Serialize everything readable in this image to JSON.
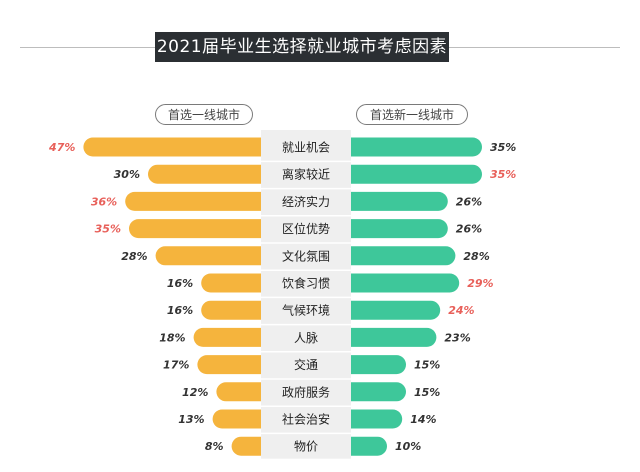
{
  "colors": {
    "left_bar": "#f5b43d",
    "right_bar": "#3ec79a",
    "highlight_text": "#e8605a",
    "normal_text": "#333333",
    "center_bg": "#efefef",
    "title_bg": "#2b2f33"
  },
  "chart_data": {
    "type": "bar",
    "title": "2021届毕业生选择就业城市考虑因素",
    "series": [
      {
        "name": "首选一线城市",
        "values": [
          47,
          30,
          36,
          35,
          28,
          16,
          16,
          18,
          17,
          12,
          13,
          8
        ],
        "labels": [
          "47%",
          "30%",
          "36%",
          "35%",
          "28%",
          "16%",
          "16%",
          "18%",
          "17%",
          "12%",
          "13%",
          "8%"
        ],
        "highlight": [
          true,
          false,
          true,
          true,
          false,
          false,
          false,
          false,
          false,
          false,
          false,
          false
        ]
      },
      {
        "name": "首选新一线城市",
        "values": [
          35,
          35,
          26,
          26,
          28,
          29,
          24,
          23,
          15,
          15,
          14,
          10
        ],
        "labels": [
          "35%",
          "35%",
          "26%",
          "26%",
          "28%",
          "29%",
          "24%",
          "23%",
          "15%",
          "15%",
          "14%",
          "10%"
        ],
        "highlight": [
          false,
          true,
          false,
          false,
          false,
          true,
          true,
          false,
          false,
          false,
          false,
          false
        ]
      }
    ],
    "categories": [
      "就业机会",
      "离家较近",
      "经济实力",
      "区位优势",
      "文化氛围",
      "饮食习惯",
      "气候环境",
      "人脉",
      "交通",
      "政府服务",
      "社会治安",
      "物价"
    ]
  }
}
